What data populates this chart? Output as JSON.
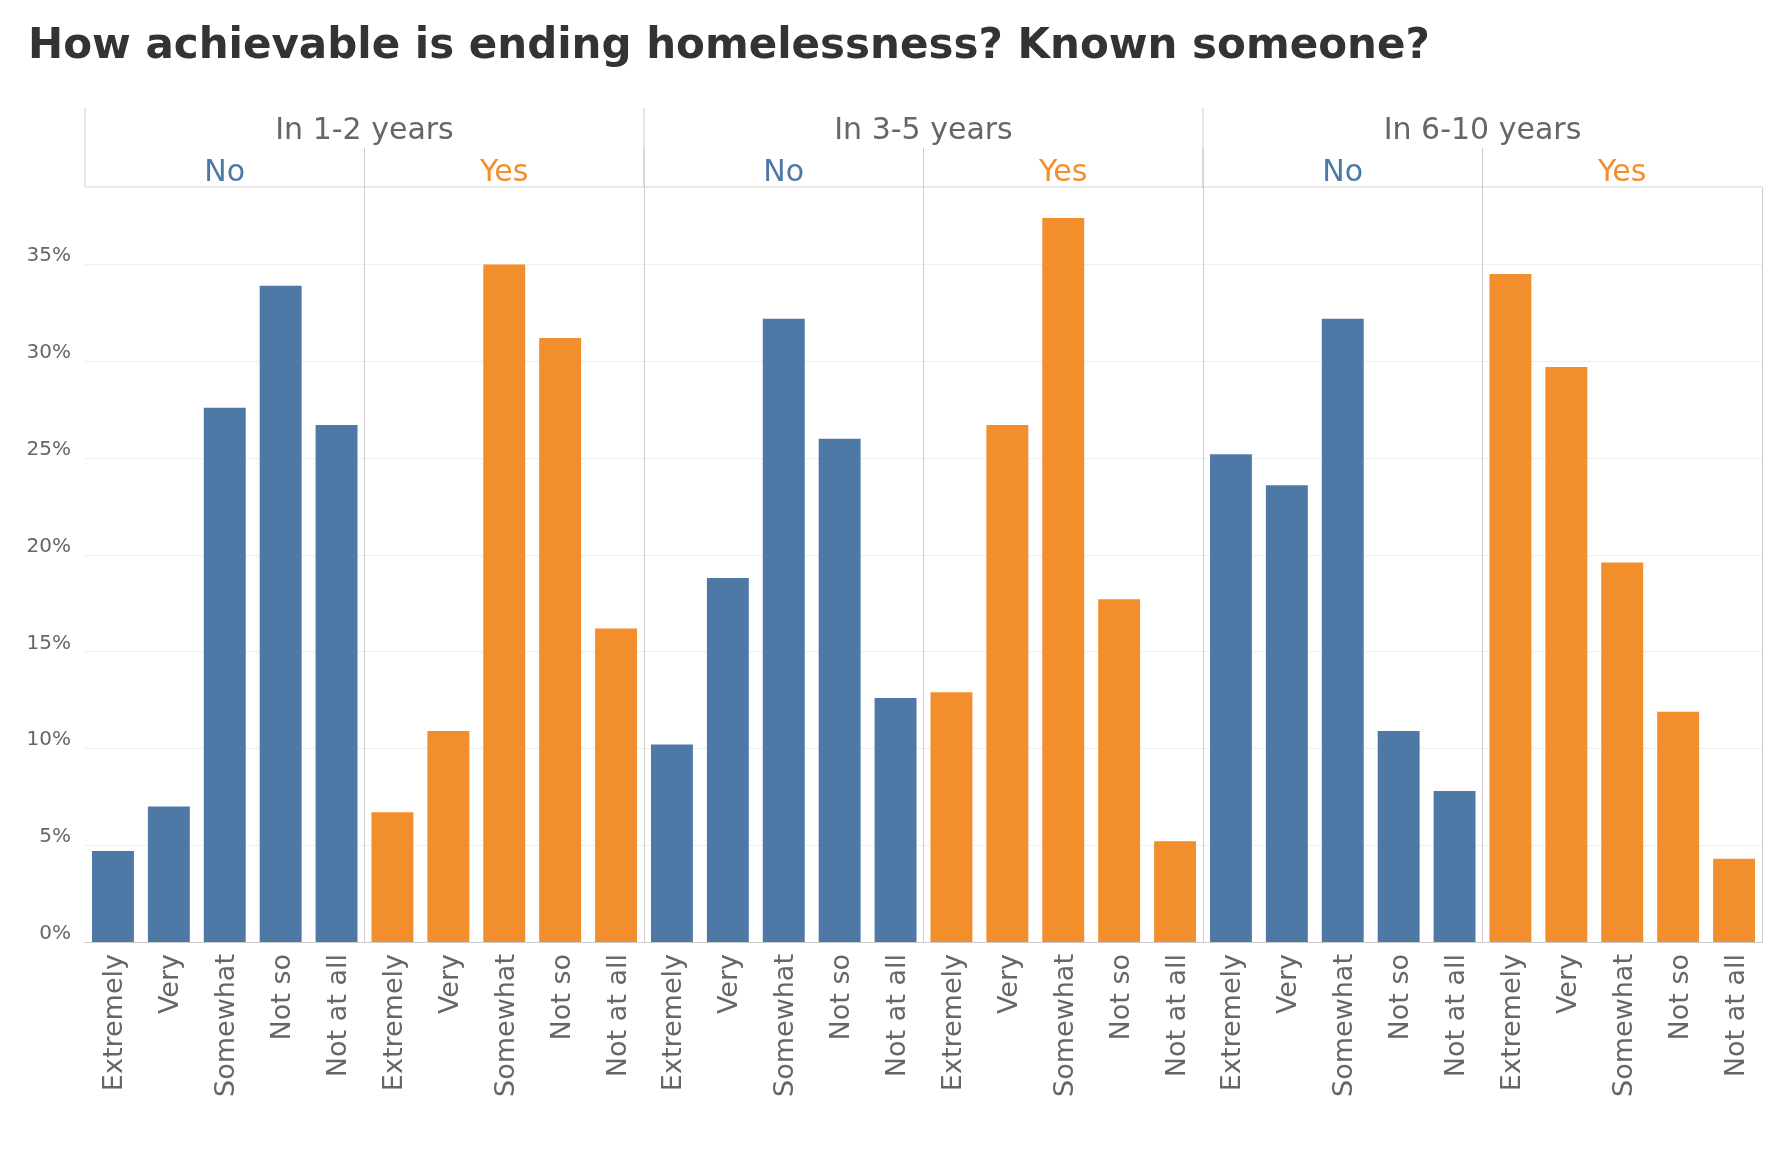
{
  "chart_data": {
    "type": "bar",
    "title": "How achievable is ending homelessness? Known someone?",
    "annotations": [
      "In 1-2 years",
      "In 3-5 years",
      "In 6-10 years"
    ],
    "categories": [
      "Extremely",
      "Very",
      "Somewhat",
      "Not so",
      "Not at all",
      "Extremely",
      "Very",
      "Somewhat",
      "Not so",
      "Not at all",
      "Extremely",
      "Very",
      "Somewhat",
      "Not so",
      "Not at all",
      "Extremely",
      "Very",
      "Somewhat",
      "Not so",
      "Not at all",
      "Extremely",
      "Very",
      "Somewhat",
      "Not so",
      "Not at all",
      "Extremely",
      "Very",
      "Somewhat",
      "Not so",
      "Not at all"
    ],
    "series": [
      {
        "name": "No",
        "color": "#4e79a7",
        "values": [
          4.7,
          7.0,
          27.6,
          33.9,
          26.7,
          null,
          null,
          null,
          null,
          null,
          10.2,
          18.8,
          32.2,
          26.0,
          12.6,
          null,
          null,
          null,
          null,
          null,
          25.2,
          23.6,
          32.2,
          10.9,
          7.8,
          null,
          null,
          null,
          null,
          null
        ]
      },
      {
        "name": "Yes",
        "color": "#f28e2b",
        "values": [
          null,
          null,
          null,
          null,
          null,
          6.7,
          10.9,
          35.0,
          31.2,
          16.2,
          null,
          null,
          null,
          null,
          null,
          12.9,
          26.7,
          37.4,
          17.7,
          5.2,
          null,
          null,
          null,
          null,
          null,
          34.5,
          29.7,
          19.6,
          11.9,
          4.3
        ]
      }
    ],
    "ylim": [
      0,
      39
    ],
    "yticks": [
      {
        "value": 0,
        "label": "0%"
      },
      {
        "value": 5,
        "label": "5%"
      },
      {
        "value": 10,
        "label": "10%"
      },
      {
        "value": 15,
        "label": "15%"
      },
      {
        "value": 20,
        "label": "20%"
      },
      {
        "value": 25,
        "label": "25%"
      },
      {
        "value": 30,
        "label": "30%"
      },
      {
        "value": 35,
        "label": "35%"
      }
    ],
    "grid": "y",
    "legend": false
  }
}
